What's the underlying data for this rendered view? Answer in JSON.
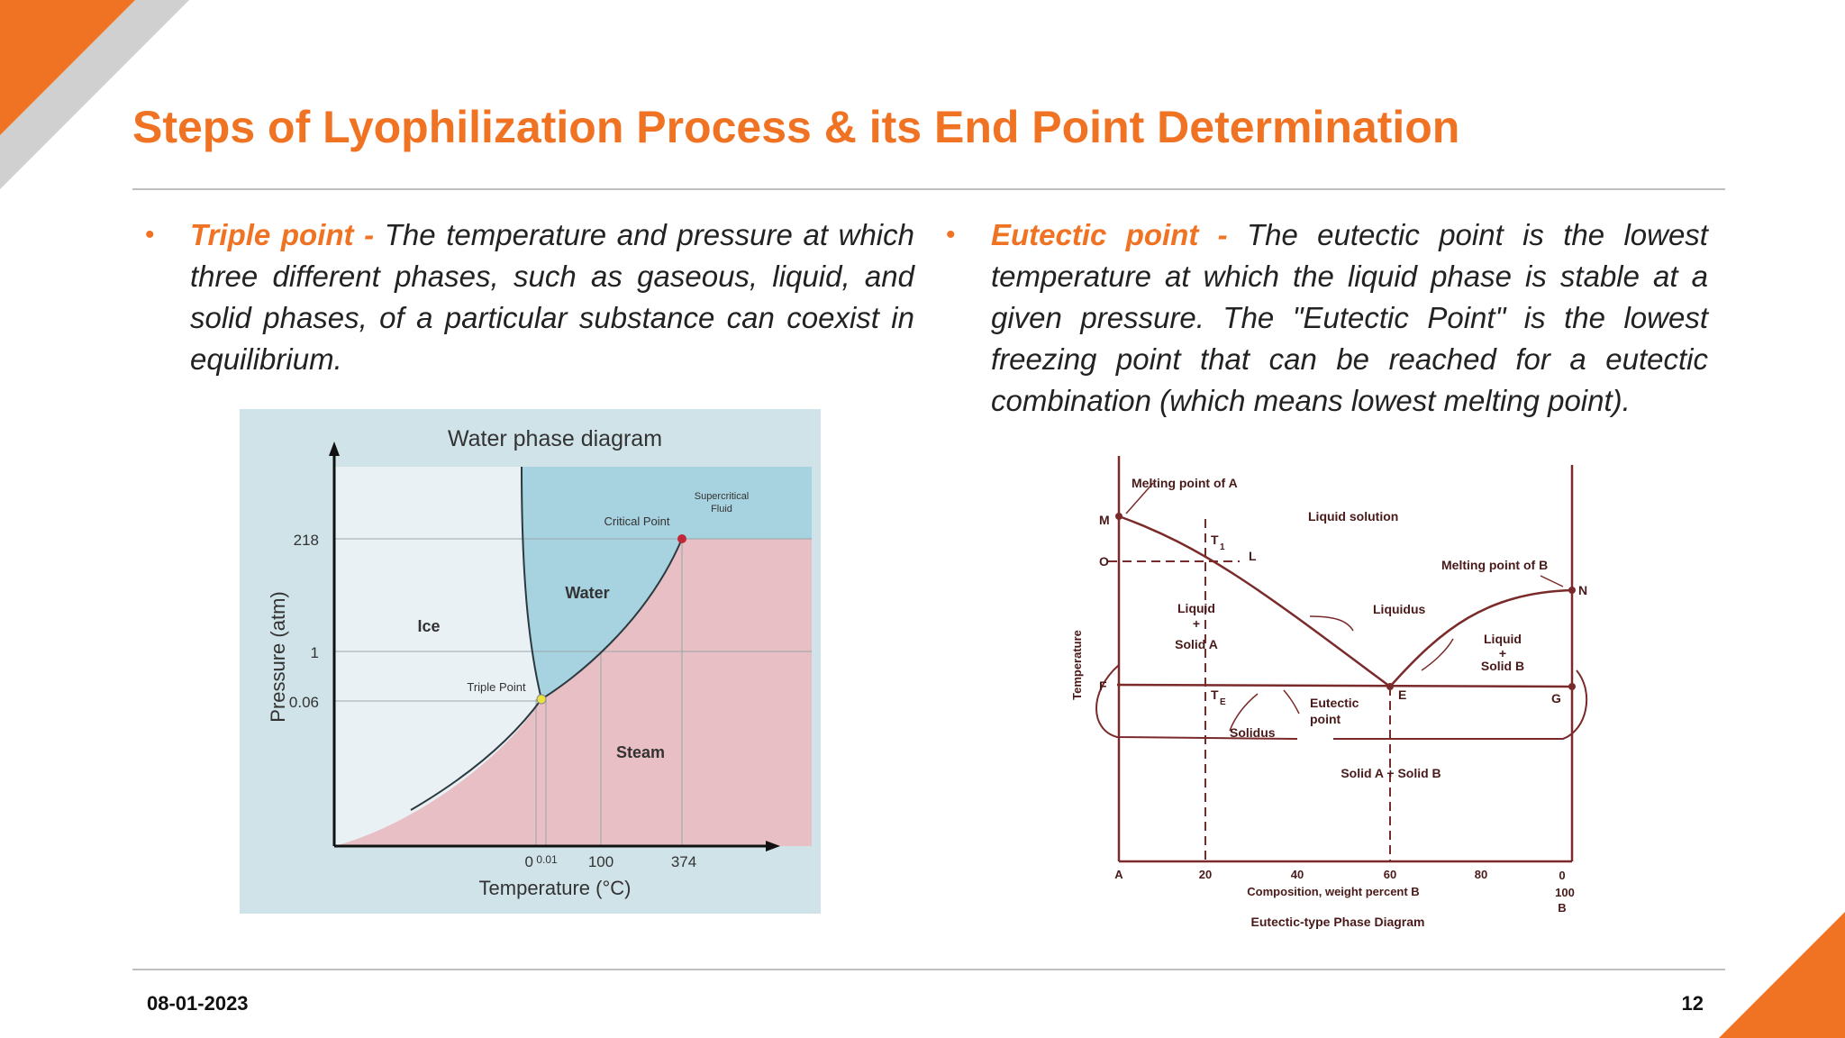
{
  "slide": {
    "title": "Steps of Lyophilization Process & its End Point Determination",
    "date": "08-01-2023",
    "page_number": "12",
    "accent_color": "#F07324",
    "bullet_icon": "bullet-dot-icon"
  },
  "bullets": [
    {
      "term": "Triple point -",
      "text": "The temperature and pressure at which three different phases, such as gaseous, liquid, and solid phases, of a particular substance can coexist in equilibrium."
    },
    {
      "term": "Eutectic point -",
      "text": "The eutectic point is the lowest temperature at which the liquid phase is stable at a given pressure. The \"Eutectic Point\" is the lowest freezing point that can be reached for a eutectic combination (which means lowest melting point)."
    }
  ],
  "water_diagram": {
    "title": "Water phase diagram",
    "ylabel": "Pressure  (atm)",
    "xlabel": "Temperature  (°C)",
    "y_ticks": [
      "218",
      "1",
      "0.06"
    ],
    "x_ticks": [
      "0",
      "0.01",
      "100",
      "374"
    ],
    "regions": [
      "Ice",
      "Water",
      "Steam"
    ],
    "supercritical": [
      "Supercritical",
      "Fluid"
    ],
    "critical_point": "Critical Point",
    "triple_point": "Triple Point",
    "colors": {
      "ice": "#EAF1F5",
      "water": "#A7D2DF",
      "steam": "#E8BFC4",
      "frame": "#CFE3E8"
    }
  },
  "eutectic_diagram": {
    "caption": "Eutectic-type Phase Diagram",
    "ylabel": "Temperature",
    "xlabel": "Composition, weight percent B",
    "x_ticks": [
      "A",
      "20",
      "40",
      "60",
      "80"
    ],
    "x_end": [
      "0",
      "100",
      "B"
    ],
    "labels": {
      "melting_a": "Melting point of A",
      "melting_b": "Melting point of B",
      "liquid_solution": "Liquid solution",
      "liquidus": "Liquidus",
      "solidus": "Solidus",
      "eutectic": [
        "Eutectic",
        "point"
      ],
      "solid_ab": "Solid A + Solid B",
      "liquid_solid_a": [
        "Liquid",
        "+",
        "Solid A"
      ],
      "liquid_solid_b": [
        "Liquid",
        "+",
        "Solid B"
      ]
    },
    "points": [
      "M",
      "O",
      "T",
      "1",
      "L",
      "N",
      "F",
      "T",
      "E",
      "E",
      "G"
    ],
    "line_color": "#7A2A2A"
  }
}
